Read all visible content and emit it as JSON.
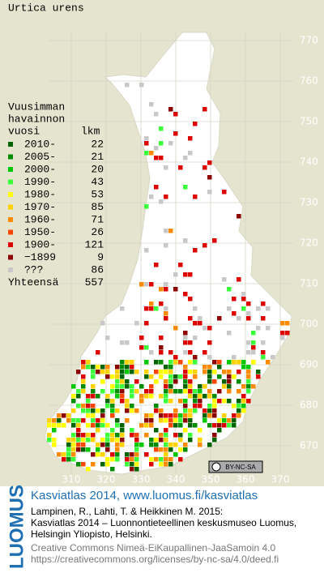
{
  "title": "Urtica urens",
  "legend": {
    "heading": [
      "Vuusimman",
      "havainnon",
      "vuosi",
      "lkm"
    ],
    "entries": [
      {
        "label": "2010-",
        "count": 22,
        "color": "#006400"
      },
      {
        "label": "2005-",
        "count": 21,
        "color": "#008c00"
      },
      {
        "label": "2000-",
        "count": 20,
        "color": "#00c800"
      },
      {
        "label": "1990-",
        "count": 43,
        "color": "#3cff3c"
      },
      {
        "label": "1980-",
        "count": 53,
        "color": "#ffff00"
      },
      {
        "label": "1970-",
        "count": 85,
        "color": "#ffd200"
      },
      {
        "label": "1960-",
        "count": 71,
        "color": "#ff8c00"
      },
      {
        "label": "1950-",
        "count": 26,
        "color": "#ff4600"
      },
      {
        "label": "1900-",
        "count": 121,
        "color": "#dc0000"
      },
      {
        "label": "−1899",
        "count": 9,
        "color": "#8c0000"
      },
      {
        "label": "???",
        "count": 86,
        "color": "#c8c8c8"
      }
    ],
    "total_label": "Yhteensä",
    "total": 557
  },
  "map": {
    "yticks": [
      670,
      680,
      690,
      700,
      710,
      720,
      730,
      740,
      750,
      760,
      770
    ],
    "xticks": [
      310,
      320,
      330,
      340,
      350,
      360,
      370
    ],
    "license_badge": "BY-NC-SA"
  },
  "credits": {
    "logo": "LUOMUS",
    "headline": "Kasviatlas 2014, www.luomus.fi/kasviatlas",
    "citation": [
      "Lampinen, R., Lahti, T. & Heikkinen M. 2015:",
      "Kasviatlas 2014 – Luonnontieteellinen keskusmuseo Luomus,",
      "Helsingin Yliopisto, Helsinki."
    ],
    "license": [
      "Creative Commons Nimeä-EiKaupallinen-JaaSamoin 4.0",
      "https://creativecommons.org/licenses/by-nc-sa/4.0/deed.fi"
    ]
  }
}
